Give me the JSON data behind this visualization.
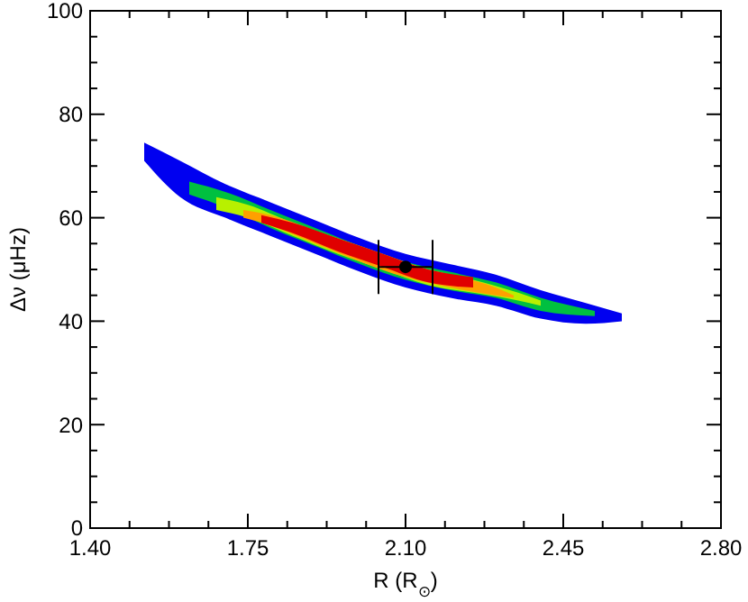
{
  "chart_data": {
    "type": "area",
    "xlabel": "R (R$_{⊙}$)",
    "ylabel": "Δν (μHz)",
    "xlim": [
      1.4,
      2.8
    ],
    "ylim": [
      0,
      100
    ],
    "xticks": [
      {
        "value": 1.4,
        "label": "1.40"
      },
      {
        "value": 1.4875,
        "label": null
      },
      {
        "value": 1.575,
        "label": null
      },
      {
        "value": 1.6625,
        "label": null
      },
      1.75,
      {
        "value": 1.8375,
        "label": null
      },
      {
        "value": 1.925,
        "label": null
      },
      {
        "value": 2.0125,
        "label": null
      },
      {
        "value": 2.1,
        "label": "2.10"
      },
      {
        "value": 2.1875,
        "label": null
      },
      {
        "value": 2.275,
        "label": null
      },
      {
        "value": 2.3625,
        "label": null
      },
      2.45,
      {
        "value": 2.5375,
        "label": null
      },
      {
        "value": 2.625,
        "label": null
      },
      {
        "value": 2.7125,
        "label": null
      },
      {
        "value": 2.8,
        "label": "2.80"
      }
    ],
    "yticks": [
      0,
      {
        "value": 5,
        "label": null
      },
      {
        "value": 10,
        "label": null
      },
      {
        "value": 15,
        "label": null
      },
      20,
      {
        "value": 25,
        "label": null
      },
      {
        "value": 30,
        "label": null
      },
      {
        "value": 35,
        "label": null
      },
      40,
      {
        "value": 45,
        "label": null
      },
      {
        "value": 50,
        "label": null
      },
      {
        "value": 55,
        "label": null
      },
      60,
      {
        "value": 65,
        "label": null
      },
      {
        "value": 70,
        "label": null
      },
      {
        "value": 75,
        "label": null
      },
      80,
      {
        "value": 85,
        "label": null
      },
      {
        "value": 90,
        "label": null
      },
      {
        "value": 95,
        "label": null
      },
      100
    ],
    "series": [
      {
        "color": "#0000f0",
        "x": [
          1.52,
          1.6,
          1.7,
          1.8,
          1.9,
          2.0,
          2.1,
          2.2,
          2.3,
          2.4,
          2.5,
          2.58
        ],
        "values": [
          null,
          null,
          null,
          null,
          null,
          null,
          null,
          null,
          null,
          null,
          null,
          null
        ],
        "lower": [
          71,
          64,
          60,
          56.5,
          53,
          49.5,
          46.5,
          44.5,
          43,
          40.5,
          39.5,
          40
        ],
        "upper": [
          74.5,
          71,
          66.5,
          63,
          59.5,
          56,
          53,
          51,
          49,
          46,
          43.5,
          41.5
        ]
      },
      {
        "color": "#00c040",
        "x": [
          1.62,
          1.7,
          1.8,
          1.9,
          2.0,
          2.1,
          2.2,
          2.3,
          2.4,
          2.52
        ],
        "values": [
          null,
          null,
          null,
          null,
          null,
          null,
          null,
          null,
          null,
          null
        ],
        "lower": [
          64.5,
          62,
          58,
          54.5,
          51,
          48,
          46,
          44.5,
          42,
          41
        ],
        "upper": [
          67,
          65,
          61.5,
          58,
          54.5,
          51.5,
          49.5,
          47.5,
          44.5,
          42
        ]
      },
      {
        "color": "#b8f000",
        "x": [
          1.68,
          1.75,
          1.85,
          1.95,
          2.05,
          2.15,
          2.25,
          2.35,
          2.4
        ],
        "values": [
          null,
          null,
          null,
          null,
          null,
          null,
          null,
          null,
          null
        ],
        "lower": [
          61.5,
          60,
          56.5,
          53,
          50,
          47,
          45.5,
          44,
          43
        ],
        "upper": [
          64,
          62.5,
          59,
          56,
          53,
          50,
          48,
          45.5,
          44
        ]
      },
      {
        "color": "#ffa000",
        "x": [
          1.74,
          1.8,
          1.9,
          2.0,
          2.1,
          2.2,
          2.3,
          2.34
        ],
        "values": [
          null,
          null,
          null,
          null,
          null,
          null,
          null,
          null
        ],
        "lower": [
          60,
          58.5,
          55,
          51.5,
          48.5,
          46.5,
          45,
          44.5
        ],
        "upper": [
          61.5,
          60.5,
          57.5,
          54,
          51,
          49,
          46.5,
          45
        ]
      },
      {
        "color": "#e00000",
        "x": [
          1.78,
          1.85,
          1.95,
          2.05,
          2.15,
          2.25
        ],
        "values": [
          null,
          null,
          null,
          null,
          null,
          null
        ],
        "lower": [
          59,
          57,
          53.5,
          50.5,
          47.5,
          46.5
        ],
        "upper": [
          60.5,
          59,
          56,
          53,
          50,
          48.5
        ]
      },
      {
        "type": "scatter",
        "color": "#000000",
        "x": [
          2.1
        ],
        "values": [
          50.5
        ],
        "xerrors": [
          0.06
        ]
      }
    ]
  }
}
